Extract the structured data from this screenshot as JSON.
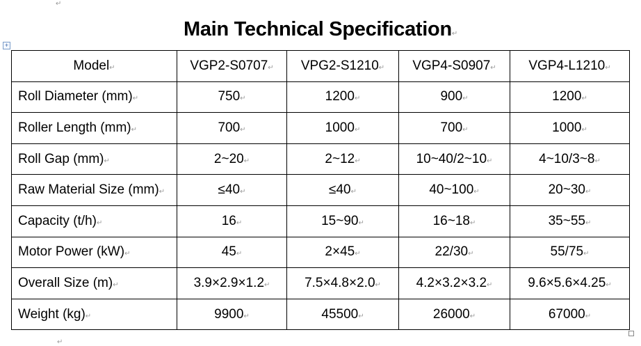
{
  "title": "Main Technical Specification",
  "mark": "↵",
  "handle_glyph": "+",
  "table": {
    "header": {
      "label": "Model",
      "columns": [
        "VGP2-S0707",
        "VPG2-S1210",
        "VGP4-S0907",
        "VGP4-L1210"
      ]
    },
    "rows": [
      {
        "label": "Roll Diameter (mm)",
        "values": [
          "750",
          "1200",
          "900",
          "1200"
        ]
      },
      {
        "label": "Roller Length (mm)",
        "values": [
          "700",
          "1000",
          "700",
          "1000"
        ]
      },
      {
        "label": "Roll Gap (mm)",
        "values": [
          "2~20",
          "2~12",
          "10~40/2~10",
          "4~10/3~8"
        ]
      },
      {
        "label": "Raw Material Size (mm)",
        "values": [
          "≤40",
          "≤40",
          "40~100",
          "20~30"
        ]
      },
      {
        "label": "Capacity (t/h)",
        "values": [
          "16",
          "15~90",
          "16~18",
          "35~55"
        ]
      },
      {
        "label": "Motor Power (kW)",
        "values": [
          "45",
          "2×45",
          "22/30",
          "55/75"
        ]
      },
      {
        "label": "Overall Size (m)",
        "values": [
          "3.9×2.9×1.2",
          "7.5×4.8×2.0",
          "4.2×3.2×3.2",
          "9.6×5.6×4.25"
        ]
      },
      {
        "label": "Weight (kg)",
        "values": [
          "9900",
          "45500",
          "26000",
          "67000"
        ]
      }
    ]
  }
}
